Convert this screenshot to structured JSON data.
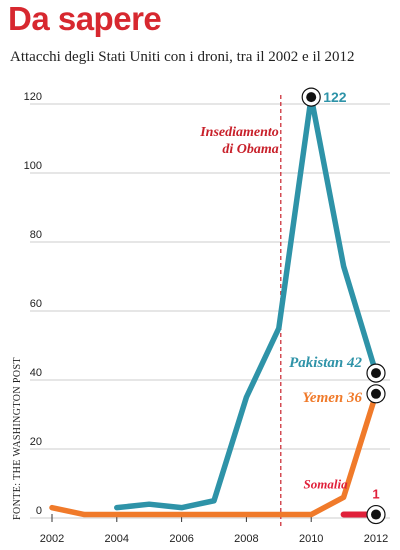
{
  "header": {
    "title": "Da sapere",
    "subtitle": "Attacchi degli Stati Uniti con i droni, tra il 2002 e il 2012"
  },
  "source_note": "FONTE: THE WASHINGTON POST",
  "chart_data": {
    "type": "line",
    "title": "Attacchi degli Stati Uniti con i droni, tra il 2002 e il 2012",
    "xlabel": "",
    "ylabel": "",
    "x_ticks": [
      "2002",
      "2004",
      "2006",
      "2008",
      "2010",
      "2012"
    ],
    "y_ticks": [
      "0",
      "20",
      "40",
      "60",
      "80",
      "100",
      "120"
    ],
    "xlim": [
      2002,
      2012
    ],
    "ylim": [
      0,
      125
    ],
    "grid": "horizontal",
    "series": [
      {
        "name": "Pakistan",
        "color": "#2e93a8",
        "x": [
          2004,
          2005,
          2006,
          2007,
          2008,
          2009,
          2010,
          2011,
          2012
        ],
        "values": [
          3,
          4,
          3,
          5,
          35,
          55,
          122,
          73,
          42
        ]
      },
      {
        "name": "Yemen",
        "color": "#f07a2a",
        "x": [
          2002,
          2003,
          2004,
          2005,
          2006,
          2007,
          2008,
          2009,
          2010,
          2011,
          2012
        ],
        "values": [
          3,
          1,
          1,
          1,
          1,
          1,
          1,
          1,
          1,
          6,
          36
        ]
      },
      {
        "name": "Somalia",
        "color": "#e0203a",
        "x": [
          2011,
          2012
        ],
        "values": [
          1,
          1
        ]
      }
    ],
    "annotations": {
      "event_line": {
        "x": 2009.0,
        "label_line1": "Insediamento",
        "label_line2": "di Obama",
        "color": "#c8202a"
      },
      "peak_label": "122",
      "pakistan_label": "Pakistan 42",
      "yemen_label": "Yemen 36",
      "somalia_label": "Somalia",
      "somalia_value": "1"
    }
  }
}
